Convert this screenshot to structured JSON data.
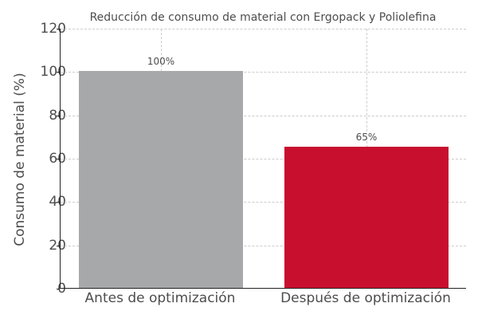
{
  "chart_data": {
    "type": "bar",
    "title": "Reducción de consumo de material con Ergopack y Poliolefina",
    "xlabel": "",
    "ylabel": "Consumo de material (%)",
    "categories": [
      "Antes de optimización",
      "Después de optimización"
    ],
    "values": [
      100,
      65
    ],
    "value_labels": [
      "100%",
      "65%"
    ],
    "colors": [
      "#A7A8AA",
      "#C8102E"
    ],
    "ylim": [
      0,
      120
    ],
    "yticks": [
      0,
      20,
      40,
      60,
      80,
      100,
      120
    ],
    "grid": true,
    "legend": null
  }
}
